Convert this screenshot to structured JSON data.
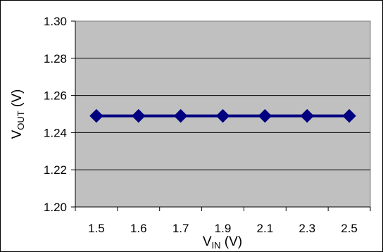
{
  "chart_data": {
    "type": "line",
    "title": "",
    "x": [
      "1.5",
      "1.6",
      "1.7",
      "1.9",
      "2.1",
      "2.3",
      "2.5"
    ],
    "series": [
      {
        "values": [
          1.249,
          1.249,
          1.249,
          1.249,
          1.249,
          1.249,
          1.249
        ]
      }
    ],
    "ylim": [
      1.2,
      1.3
    ],
    "yticks": [
      "1.30",
      "1.28",
      "1.26",
      "1.24",
      "1.22",
      "1.20"
    ],
    "ytick_values": [
      1.3,
      1.28,
      1.26,
      1.24,
      1.22,
      1.2
    ],
    "xlabel": {
      "main": "V",
      "sub": "IN",
      "unit": " (V)"
    },
    "ylabel": {
      "main": "V",
      "sub": "OUT",
      "unit": " (V)"
    },
    "grid": true,
    "legend": "none",
    "colors": {
      "plot_background": "#c0c0c0",
      "series": "#000080",
      "grid": "#000000"
    }
  }
}
